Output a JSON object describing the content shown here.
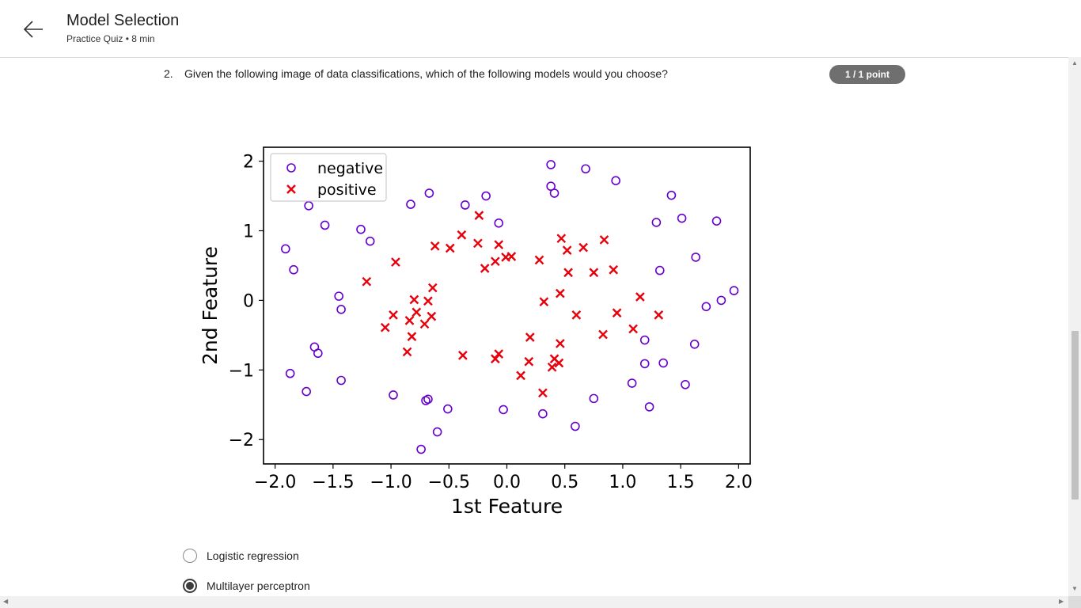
{
  "header": {
    "title": "Model Selection",
    "subtitle": "Practice Quiz • 8 min",
    "back_icon": "arrow-left-icon"
  },
  "question": {
    "number": "2.",
    "text": "Given the following image of data classifications, which of the following models would you choose?",
    "points": "1 / 1 point"
  },
  "options": [
    {
      "label": "Logistic regression",
      "selected": false
    },
    {
      "label": "Multilayer perceptron",
      "selected": true
    }
  ],
  "colors": {
    "negative": "#6600cc",
    "positive": "#e8000b",
    "badge": "#6f6f6f"
  },
  "chart_data": {
    "type": "scatter",
    "xlabel": "1st Feature",
    "ylabel": "2nd Feature",
    "xlim": [
      -2.1,
      2.1
    ],
    "ylim": [
      -2.35,
      2.2
    ],
    "xticks": [
      -2.0,
      -1.5,
      -1.0,
      -0.5,
      0.0,
      0.5,
      1.0,
      1.5,
      2.0
    ],
    "xtick_labels": [
      "−2.0",
      "−1.5",
      "−1.0",
      "−0.5",
      "0.0",
      "0.5",
      "1.0",
      "1.5",
      "2.0"
    ],
    "yticks": [
      2,
      1,
      0,
      -1,
      -2
    ],
    "ytick_labels": [
      "2",
      "1",
      "0",
      "−1",
      "−2"
    ],
    "legend_position": "top-left",
    "grid": false,
    "series": [
      {
        "name": "negative",
        "marker": "circle",
        "points": [
          [
            0.38,
            1.95
          ],
          [
            0.68,
            1.89
          ],
          [
            0.94,
            1.72
          ],
          [
            0.38,
            1.64
          ],
          [
            0.41,
            1.54
          ],
          [
            -0.67,
            1.54
          ],
          [
            -0.18,
            1.5
          ],
          [
            1.42,
            1.51
          ],
          [
            -0.83,
            1.38
          ],
          [
            -1.71,
            1.36
          ],
          [
            -0.36,
            1.37
          ],
          [
            -0.07,
            1.11
          ],
          [
            1.29,
            1.12
          ],
          [
            1.51,
            1.18
          ],
          [
            1.81,
            1.14
          ],
          [
            -1.57,
            1.08
          ],
          [
            -1.26,
            1.02
          ],
          [
            -1.18,
            0.85
          ],
          [
            -1.91,
            0.74
          ],
          [
            -1.84,
            0.44
          ],
          [
            1.63,
            0.62
          ],
          [
            1.32,
            0.43
          ],
          [
            -1.45,
            0.06
          ],
          [
            1.96,
            0.14
          ],
          [
            1.85,
            0.0
          ],
          [
            -1.43,
            -0.13
          ],
          [
            1.72,
            -0.09
          ],
          [
            1.19,
            -0.57
          ],
          [
            -1.66,
            -0.67
          ],
          [
            -1.63,
            -0.76
          ],
          [
            1.62,
            -0.63
          ],
          [
            1.19,
            -0.91
          ],
          [
            1.35,
            -0.9
          ],
          [
            -1.87,
            -1.05
          ],
          [
            -1.43,
            -1.15
          ],
          [
            1.08,
            -1.19
          ],
          [
            -1.73,
            -1.31
          ],
          [
            -0.98,
            -1.36
          ],
          [
            1.54,
            -1.21
          ],
          [
            -0.7,
            -1.44
          ],
          [
            -0.68,
            -1.42
          ],
          [
            0.75,
            -1.41
          ],
          [
            -0.51,
            -1.56
          ],
          [
            -0.03,
            -1.57
          ],
          [
            1.23,
            -1.53
          ],
          [
            0.31,
            -1.63
          ],
          [
            0.59,
            -1.81
          ],
          [
            -0.6,
            -1.89
          ],
          [
            -0.74,
            -2.14
          ]
        ]
      },
      {
        "name": "positive",
        "marker": "x",
        "points": [
          [
            -0.24,
            1.22
          ],
          [
            -0.39,
            0.94
          ],
          [
            -0.25,
            0.82
          ],
          [
            -0.62,
            0.78
          ],
          [
            -0.49,
            0.75
          ],
          [
            0.47,
            0.89
          ],
          [
            0.84,
            0.87
          ],
          [
            0.52,
            0.72
          ],
          [
            0.66,
            0.76
          ],
          [
            -0.07,
            0.8
          ],
          [
            -0.1,
            0.56
          ],
          [
            -0.19,
            0.46
          ],
          [
            -0.01,
            0.62
          ],
          [
            0.04,
            0.63
          ],
          [
            -0.96,
            0.55
          ],
          [
            0.28,
            0.58
          ],
          [
            0.53,
            0.4
          ],
          [
            0.75,
            0.4
          ],
          [
            0.92,
            0.44
          ],
          [
            -1.21,
            0.27
          ],
          [
            -0.64,
            0.18
          ],
          [
            -0.8,
            0.01
          ],
          [
            -0.68,
            -0.01
          ],
          [
            0.32,
            -0.02
          ],
          [
            0.46,
            0.1
          ],
          [
            1.15,
            0.05
          ],
          [
            -0.78,
            -0.17
          ],
          [
            -0.98,
            -0.21
          ],
          [
            -0.65,
            -0.23
          ],
          [
            -0.84,
            -0.29
          ],
          [
            -0.71,
            -0.34
          ],
          [
            -1.05,
            -0.39
          ],
          [
            0.6,
            -0.21
          ],
          [
            0.95,
            -0.18
          ],
          [
            1.31,
            -0.21
          ],
          [
            1.09,
            -0.41
          ],
          [
            0.83,
            -0.49
          ],
          [
            0.2,
            -0.53
          ],
          [
            -0.82,
            -0.52
          ],
          [
            0.46,
            -0.62
          ],
          [
            -0.86,
            -0.74
          ],
          [
            -0.38,
            -0.79
          ],
          [
            -0.07,
            -0.77
          ],
          [
            -0.1,
            -0.84
          ],
          [
            0.41,
            -0.84
          ],
          [
            0.45,
            -0.9
          ],
          [
            0.19,
            -0.88
          ],
          [
            0.39,
            -0.96
          ],
          [
            0.12,
            -1.08
          ],
          [
            0.31,
            -1.33
          ]
        ]
      }
    ]
  }
}
